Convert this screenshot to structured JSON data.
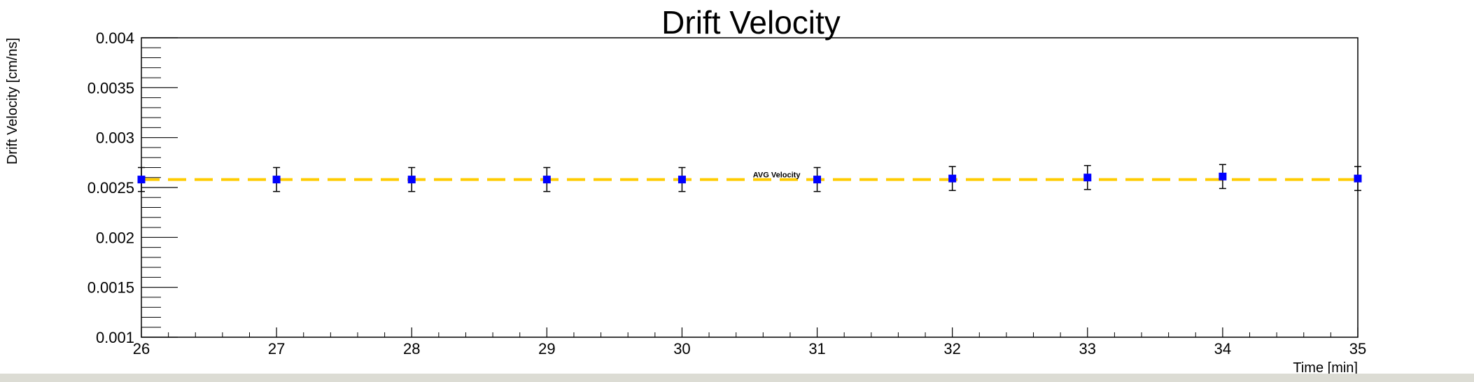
{
  "chart_data": {
    "type": "scatter",
    "title": "Drift Velocity",
    "xlabel": "Time [min]",
    "ylabel": "Drift Velocity [cm/ns]",
    "xlim": [
      26,
      35
    ],
    "ylim": [
      0.001,
      0.004
    ],
    "x_ticks": [
      "26",
      "27",
      "28",
      "29",
      "30",
      "31",
      "32",
      "33",
      "34",
      "35"
    ],
    "y_ticks": [
      "0.001",
      "0.0015",
      "0.002",
      "0.0025",
      "0.003",
      "0.0035",
      "0.004"
    ],
    "grid": false,
    "series": [
      {
        "x": [
          26,
          27,
          28,
          29,
          30,
          31,
          32,
          33,
          34,
          35
        ],
        "y": [
          0.00258,
          0.00258,
          0.00258,
          0.00258,
          0.00258,
          0.00258,
          0.00259,
          0.0026,
          0.00261,
          0.00259
        ],
        "yerr": [
          0.00012,
          0.00012,
          0.00012,
          0.00012,
          0.00012,
          0.00012,
          0.00012,
          0.00012,
          0.00012,
          0.00012
        ],
        "color": "#0000ff"
      }
    ],
    "reference_line": {
      "label": "AVG Velocity",
      "y": 0.00258,
      "color": "#ffcc00",
      "style": "dashed"
    }
  }
}
